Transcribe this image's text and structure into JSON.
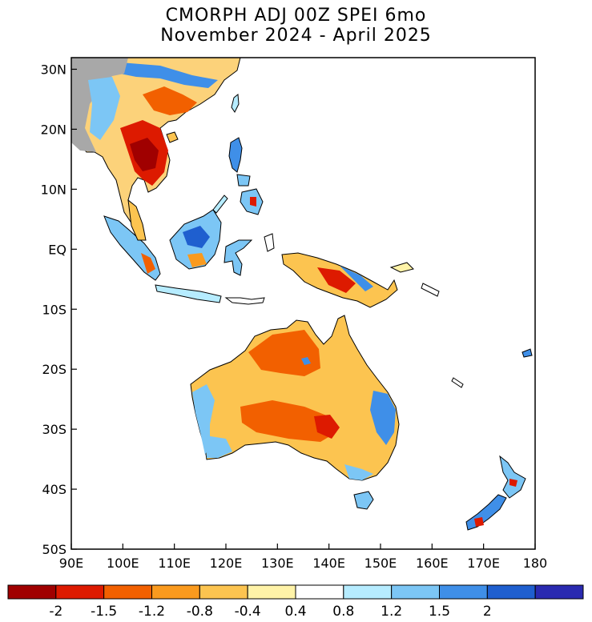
{
  "title": {
    "line1": "CMORPH ADJ 00Z SPEI 6mo",
    "line2": "November 2024 - April 2025"
  },
  "map": {
    "region": "Southeast Asia, Maritime Continent, Australia and New Zealand",
    "lon_range": [
      90,
      180
    ],
    "lat_range": [
      -50,
      30
    ],
    "lat_ticks": [
      "30N",
      "20N",
      "10N",
      "EQ",
      "10S",
      "20S",
      "30S",
      "40S",
      "50S"
    ],
    "lon_ticks": [
      "90E",
      "100E",
      "110E",
      "120E",
      "130E",
      "140E",
      "150E",
      "160E",
      "170E",
      "180"
    ]
  },
  "colorbar": {
    "labels": [
      "-2",
      "-1.5",
      "-1.2",
      "-0.8",
      "-0.4",
      "0.4",
      "0.8",
      "1.2",
      "1.5",
      "2"
    ],
    "colors": [
      "#a00000",
      "#dd1a00",
      "#f26000",
      "#fa9a1e",
      "#fcc450",
      "#fff3a8",
      "#ffffff",
      "#b6ecff",
      "#7cc6f5",
      "#3f8fe8",
      "#1f5fcf",
      "#2a2ab0"
    ]
  }
}
